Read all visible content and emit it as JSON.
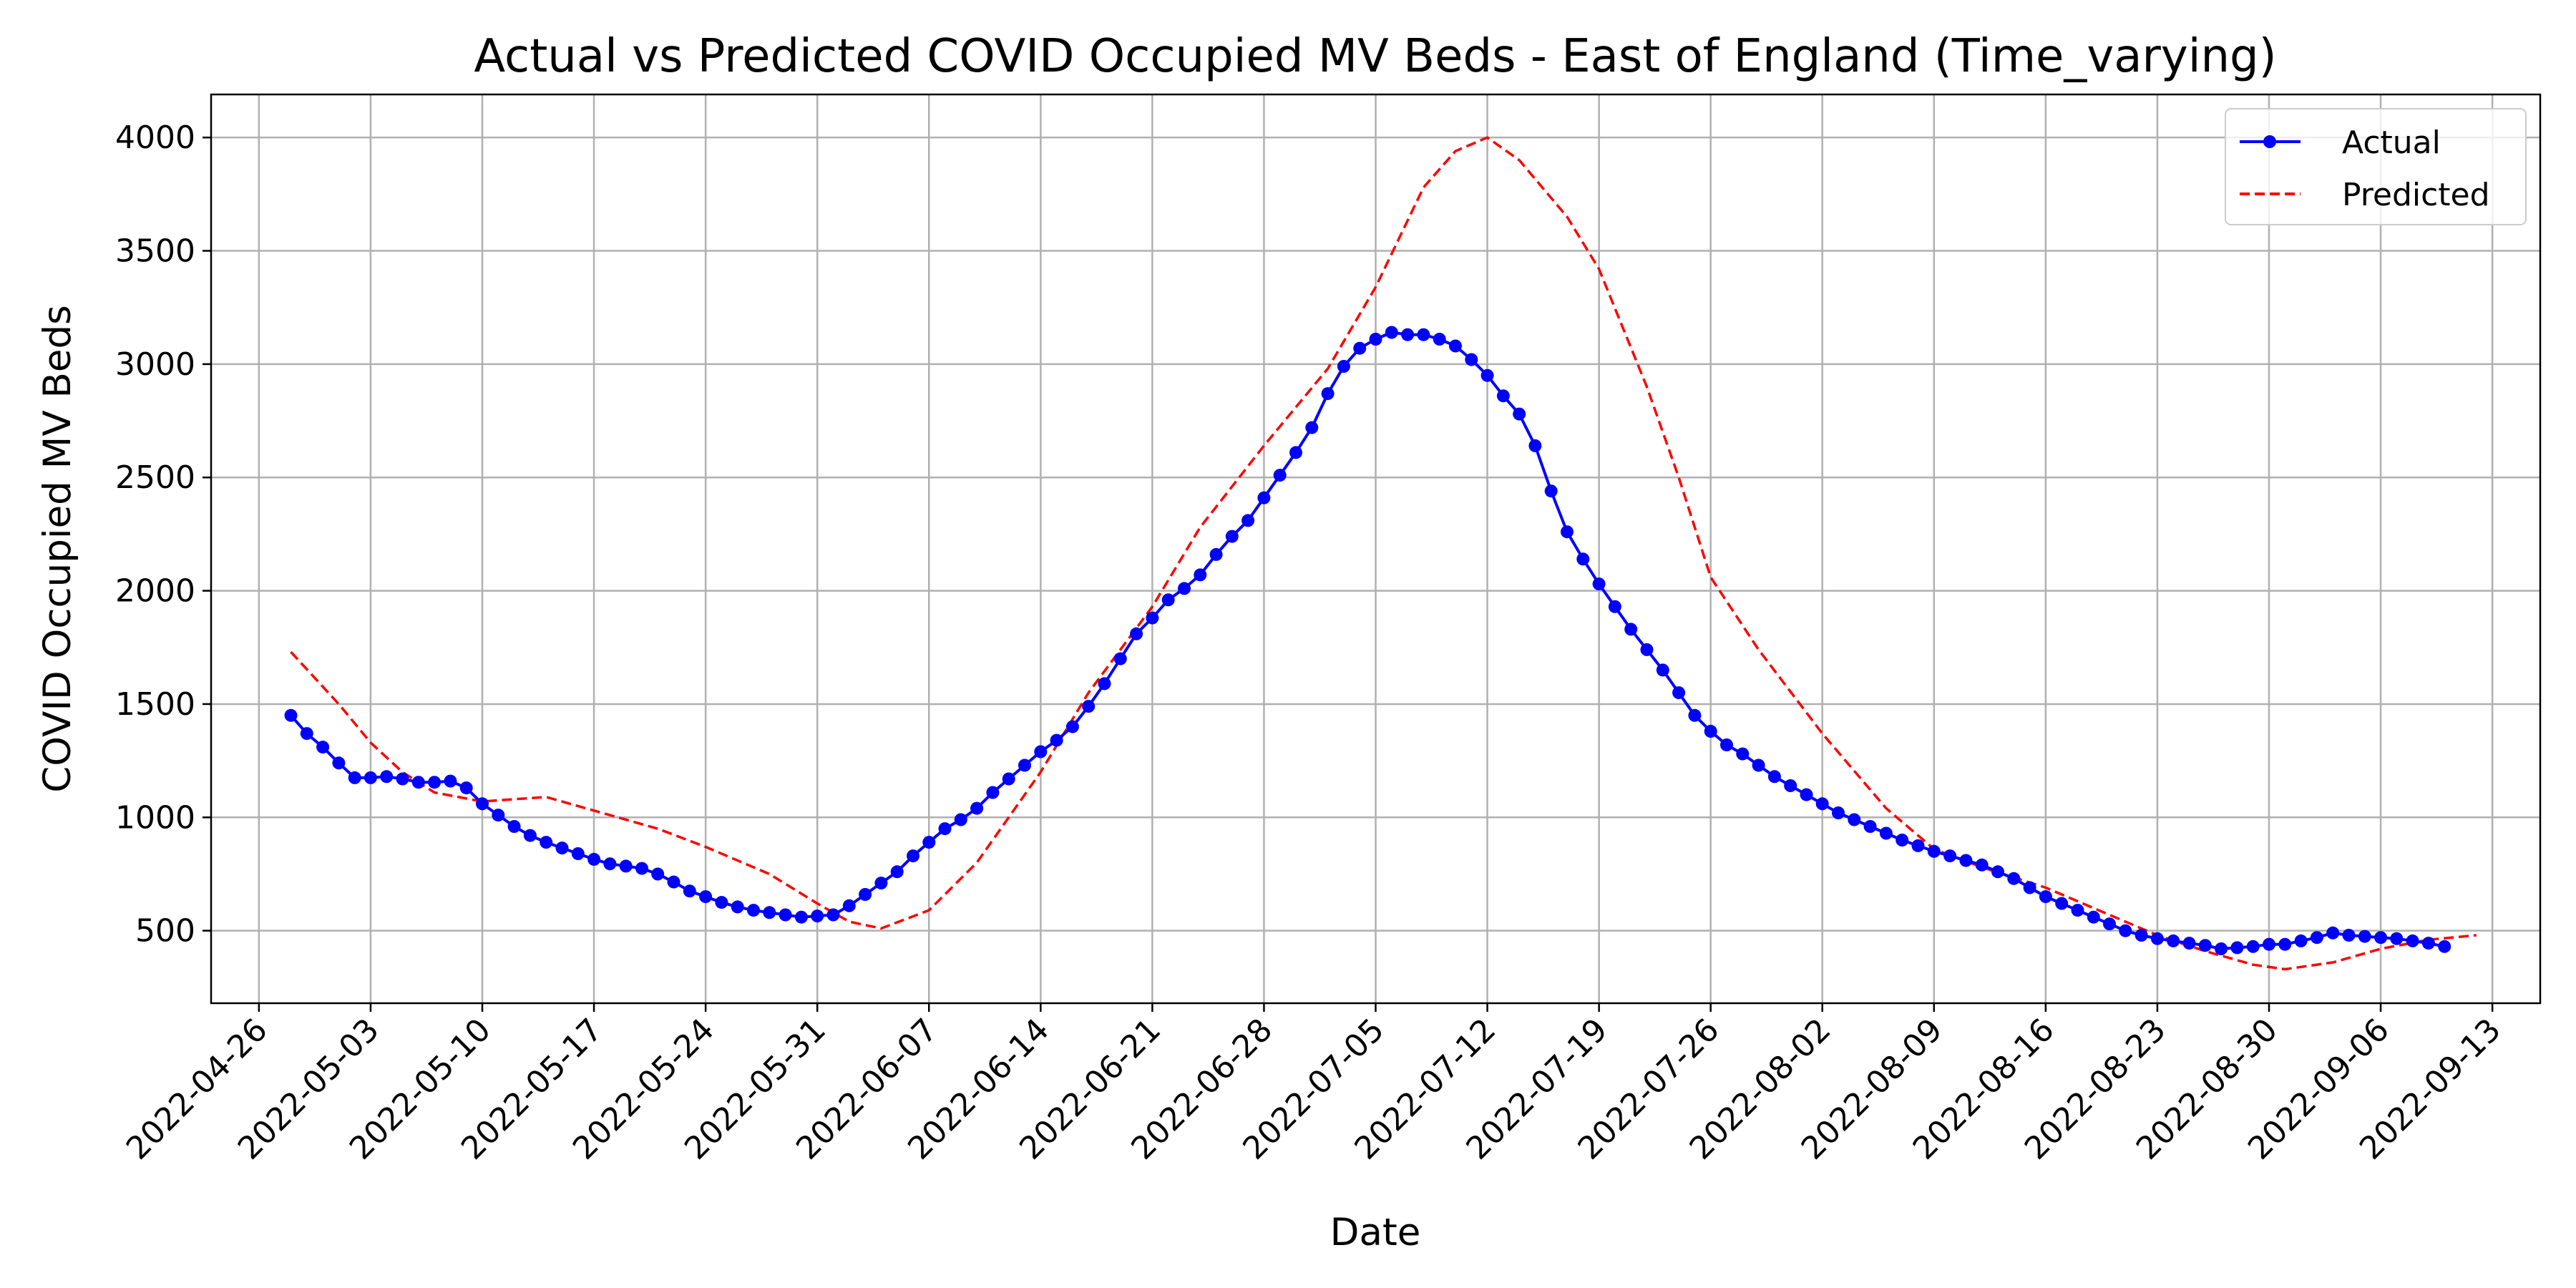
{
  "chart_data": {
    "type": "line",
    "title": "Actual vs Predicted COVID Occupied MV Beds - East of England (Time_varying)",
    "xlabel": "Date",
    "ylabel": "COVID Occupied MV Beds",
    "xlim": [
      "2022-04-23",
      "2022-09-16"
    ],
    "ylim": [
      180,
      4190
    ],
    "x_ticks": [
      "2022-04-26",
      "2022-05-03",
      "2022-05-10",
      "2022-05-17",
      "2022-05-24",
      "2022-05-31",
      "2022-06-07",
      "2022-06-14",
      "2022-06-21",
      "2022-06-28",
      "2022-07-05",
      "2022-07-12",
      "2022-07-19",
      "2022-07-26",
      "2022-08-02",
      "2022-08-09",
      "2022-08-16",
      "2022-08-23",
      "2022-08-30",
      "2022-09-06",
      "2022-09-13"
    ],
    "y_ticks": [
      500,
      1000,
      1500,
      2000,
      2500,
      3000,
      3500,
      4000
    ],
    "grid": true,
    "legend": "top-right",
    "colors": {
      "actual": "#0000ff",
      "predicted": "#ff0000"
    },
    "series": [
      {
        "name": "Actual",
        "style": "solid line with circle markers",
        "x_start": "2022-04-28",
        "x_step_days": 1,
        "values": [
          1450,
          1370,
          1310,
          1240,
          1175,
          1175,
          1180,
          1170,
          1155,
          1155,
          1160,
          1130,
          1060,
          1010,
          960,
          920,
          890,
          865,
          840,
          815,
          795,
          785,
          775,
          750,
          715,
          675,
          650,
          625,
          605,
          590,
          580,
          570,
          560,
          565,
          570,
          610,
          660,
          710,
          760,
          830,
          890,
          950,
          990,
          1040,
          1110,
          1170,
          1230,
          1290,
          1340,
          1400,
          1490,
          1590,
          1700,
          1810,
          1880,
          1960,
          2010,
          2070,
          2160,
          2240,
          2310,
          2410,
          2510,
          2610,
          2720,
          2870,
          2990,
          3070,
          3110,
          3140,
          3130,
          3130,
          3110,
          3080,
          3020,
          2950,
          2860,
          2780,
          2640,
          2440,
          2260,
          2140,
          2030,
          1930,
          1830,
          1740,
          1650,
          1550,
          1450,
          1380,
          1320,
          1280,
          1230,
          1180,
          1140,
          1100,
          1060,
          1020,
          990,
          960,
          930,
          900,
          875,
          850,
          830,
          810,
          790,
          760,
          730,
          690,
          650,
          620,
          590,
          560,
          530,
          500,
          480,
          465,
          455,
          445,
          435,
          420,
          425,
          430,
          440,
          440,
          455,
          470,
          490,
          480,
          475,
          470,
          465,
          455,
          445,
          430
        ]
      },
      {
        "name": "Predicted",
        "style": "dashed line",
        "x": [
          "2022-04-28",
          "2022-05-01",
          "2022-05-03",
          "2022-05-05",
          "2022-05-07",
          "2022-05-10",
          "2022-05-14",
          "2022-05-17",
          "2022-05-21",
          "2022-05-24",
          "2022-05-28",
          "2022-05-31",
          "2022-06-02",
          "2022-06-04",
          "2022-06-07",
          "2022-06-10",
          "2022-06-14",
          "2022-06-17",
          "2022-06-21",
          "2022-06-24",
          "2022-06-28",
          "2022-07-02",
          "2022-07-05",
          "2022-07-08",
          "2022-07-10",
          "2022-07-12",
          "2022-07-14",
          "2022-07-17",
          "2022-07-19",
          "2022-07-22",
          "2022-07-24",
          "2022-07-26",
          "2022-07-29",
          "2022-08-02",
          "2022-08-06",
          "2022-08-09",
          "2022-08-12",
          "2022-08-16",
          "2022-08-20",
          "2022-08-23",
          "2022-08-26",
          "2022-08-29",
          "2022-08-31",
          "2022-09-03",
          "2022-09-06",
          "2022-09-09",
          "2022-09-12"
        ],
        "values": [
          1730,
          1500,
          1330,
          1200,
          1110,
          1070,
          1090,
          1030,
          950,
          870,
          750,
          620,
          540,
          510,
          590,
          800,
          1200,
          1550,
          1930,
          2280,
          2640,
          2980,
          3340,
          3780,
          3940,
          4000,
          3900,
          3650,
          3420,
          2900,
          2500,
          2060,
          1740,
          1370,
          1040,
          860,
          780,
          690,
          570,
          480,
          410,
          350,
          330,
          360,
          420,
          460,
          480
        ]
      }
    ]
  }
}
